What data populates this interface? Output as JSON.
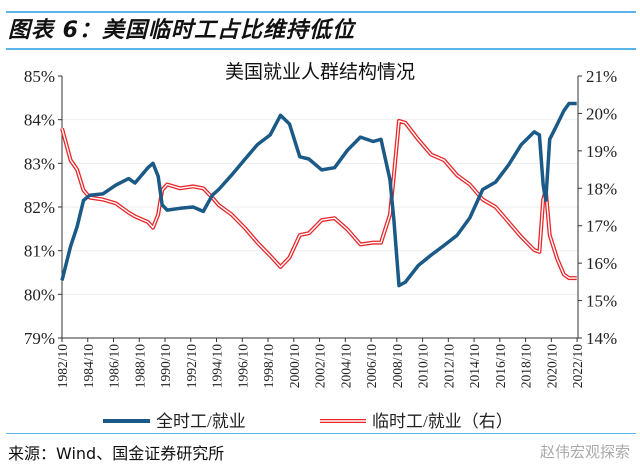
{
  "figure_title": "图表 6：美国临时工占比维持低位",
  "source": "来源：Wind、国金证券研究所",
  "watermark": "赵伟宏观探索",
  "colors": {
    "full_time": "#1b5a87",
    "part_time": "#e8262a"
  },
  "chart_data": {
    "type": "line",
    "title": "美国就业人群结构情况",
    "xlabel": "",
    "ylabel": "",
    "y2label": "",
    "x_ticks": [
      "1982/10",
      "1984/10",
      "1986/10",
      "1988/10",
      "1990/10",
      "1992/10",
      "1994/10",
      "1996/10",
      "1998/10",
      "2000/10",
      "2002/10",
      "2004/10",
      "2006/10",
      "2008/10",
      "2010/10",
      "2012/10",
      "2014/10",
      "2016/10",
      "2018/10",
      "2020/10",
      "2022/10"
    ],
    "xlim": [
      1982.83,
      2022.9
    ],
    "ylim": [
      79,
      85
    ],
    "y_ticks": [
      "79%",
      "80%",
      "81%",
      "82%",
      "83%",
      "84%",
      "85%"
    ],
    "y2lim": [
      14,
      21
    ],
    "y2_ticks": [
      "14%",
      "15%",
      "16%",
      "17%",
      "18%",
      "19%",
      "20%",
      "21%"
    ],
    "grid": true,
    "legend_position": "bottom",
    "x": [
      1982.83,
      1983.5,
      1984,
      1984.5,
      1985,
      1986,
      1987,
      1988,
      1988.5,
      1989.5,
      1989.9,
      1990.3,
      1990.6,
      1991,
      1992,
      1993,
      1993.8,
      1994.5,
      1995,
      1996,
      1997,
      1998,
      1999,
      1999.8,
      2000.5,
      2001.3,
      2002,
      2003,
      2004,
      2005,
      2006,
      2007,
      2007.6,
      2008.3,
      2008.6,
      2009,
      2009.5,
      2010.5,
      2011.5,
      2012.5,
      2013.5,
      2014.5,
      2015.5,
      2016.5,
      2017.5,
      2018.5,
      2019.5,
      2019.9,
      2020.2,
      2020.4,
      2020.7,
      2021.3,
      2021.8,
      2022.2,
      2022.8
    ],
    "series": [
      {
        "name": "全时工/就业",
        "axis": "left",
        "values": [
          80.32,
          81.1,
          81.55,
          82.15,
          82.27,
          82.3,
          82.5,
          82.65,
          82.55,
          82.9,
          83.0,
          82.7,
          82.05,
          81.93,
          81.97,
          82.0,
          81.9,
          82.27,
          82.4,
          82.73,
          83.08,
          83.43,
          83.65,
          84.1,
          83.9,
          83.15,
          83.1,
          82.85,
          82.9,
          83.3,
          83.6,
          83.5,
          83.55,
          82.62,
          81.7,
          80.2,
          80.28,
          80.66,
          80.9,
          81.12,
          81.35,
          81.75,
          82.4,
          82.57,
          82.96,
          83.43,
          83.72,
          83.65,
          82.5,
          82.15,
          83.55,
          83.9,
          84.2,
          84.37,
          84.37
        ]
      },
      {
        "name": "临时工/就业（右）",
        "axis": "right",
        "values": [
          19.6,
          18.75,
          18.5,
          17.95,
          17.75,
          17.7,
          17.6,
          17.35,
          17.25,
          17.1,
          16.95,
          17.3,
          17.95,
          18.1,
          18.0,
          18.05,
          18.0,
          17.75,
          17.55,
          17.3,
          16.95,
          16.55,
          16.2,
          15.9,
          16.15,
          16.75,
          16.8,
          17.15,
          17.2,
          16.9,
          16.5,
          16.55,
          16.55,
          17.3,
          18.35,
          19.8,
          19.75,
          19.3,
          18.9,
          18.75,
          18.35,
          18.1,
          17.7,
          17.5,
          17.1,
          16.7,
          16.35,
          16.3,
          17.7,
          17.95,
          16.75,
          16.1,
          15.7,
          15.6,
          15.6
        ]
      }
    ]
  }
}
